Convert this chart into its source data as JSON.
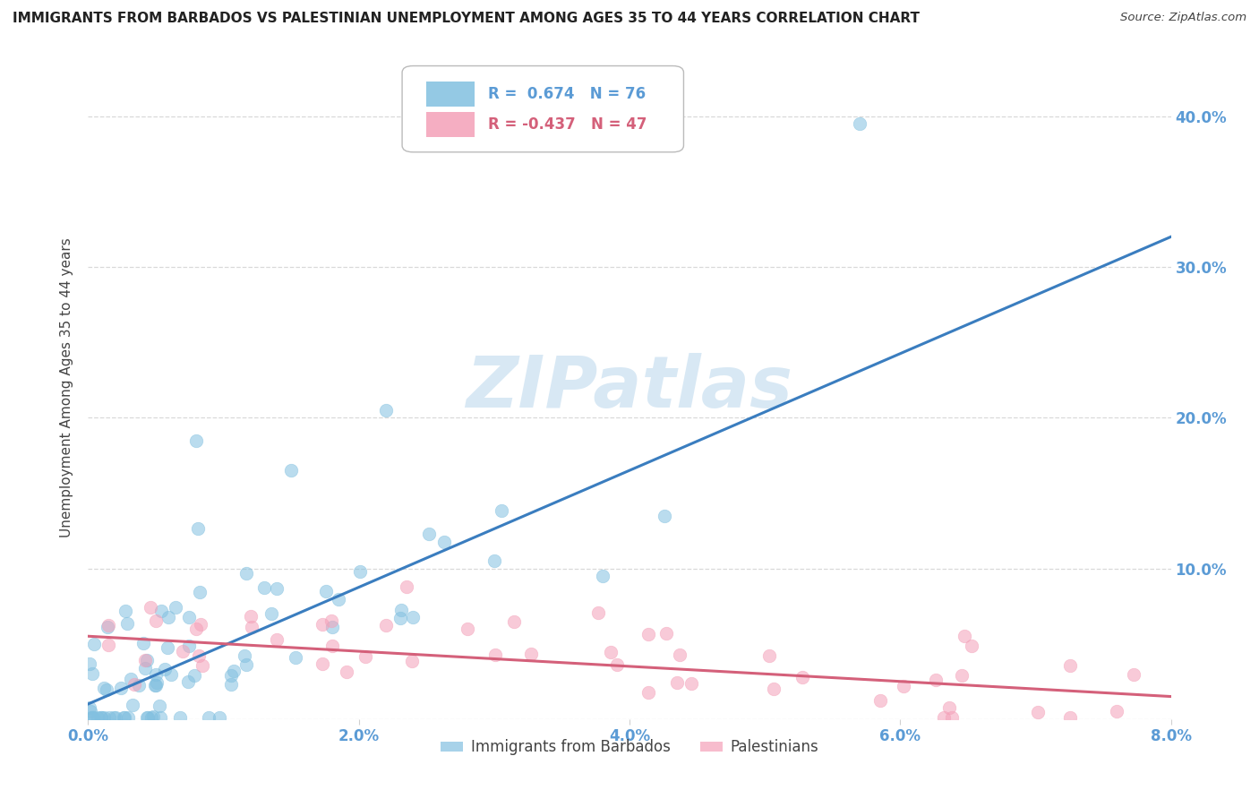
{
  "title": "IMMIGRANTS FROM BARBADOS VS PALESTINIAN UNEMPLOYMENT AMONG AGES 35 TO 44 YEARS CORRELATION CHART",
  "source": "Source: ZipAtlas.com",
  "ylabel": "Unemployment Among Ages 35 to 44 years",
  "watermark": "ZIPatlas",
  "blue_label": "Immigrants from Barbados",
  "pink_label": "Palestinians",
  "blue_R": 0.674,
  "blue_N": 76,
  "pink_R": -0.437,
  "pink_N": 47,
  "blue_color": "#82c0e0",
  "pink_color": "#f4a0b8",
  "blue_line_color": "#3a7dbf",
  "pink_line_color": "#d4607a",
  "xlim": [
    0.0,
    0.08
  ],
  "ylim": [
    0.0,
    0.44
  ],
  "yticks": [
    0.0,
    0.1,
    0.2,
    0.3,
    0.4
  ],
  "ytick_labels": [
    "",
    "10.0%",
    "20.0%",
    "30.0%",
    "40.0%"
  ],
  "xticks": [
    0.0,
    0.02,
    0.04,
    0.06,
    0.08
  ],
  "xtick_labels": [
    "0.0%",
    "2.0%",
    "4.0%",
    "6.0%",
    "8.0%"
  ],
  "blue_line_x0": 0.0,
  "blue_line_x1": 0.08,
  "blue_line_y0": 0.01,
  "blue_line_y1": 0.32,
  "pink_line_x0": 0.0,
  "pink_line_x1": 0.08,
  "pink_line_y0": 0.055,
  "pink_line_y1": 0.015,
  "background_color": "#ffffff",
  "grid_color": "#d0d0d0",
  "title_color": "#222222",
  "axis_label_color": "#444444",
  "tick_label_color": "#5b9bd5",
  "pink_text_color": "#d4607a",
  "watermark_color": "#c8dff0"
}
